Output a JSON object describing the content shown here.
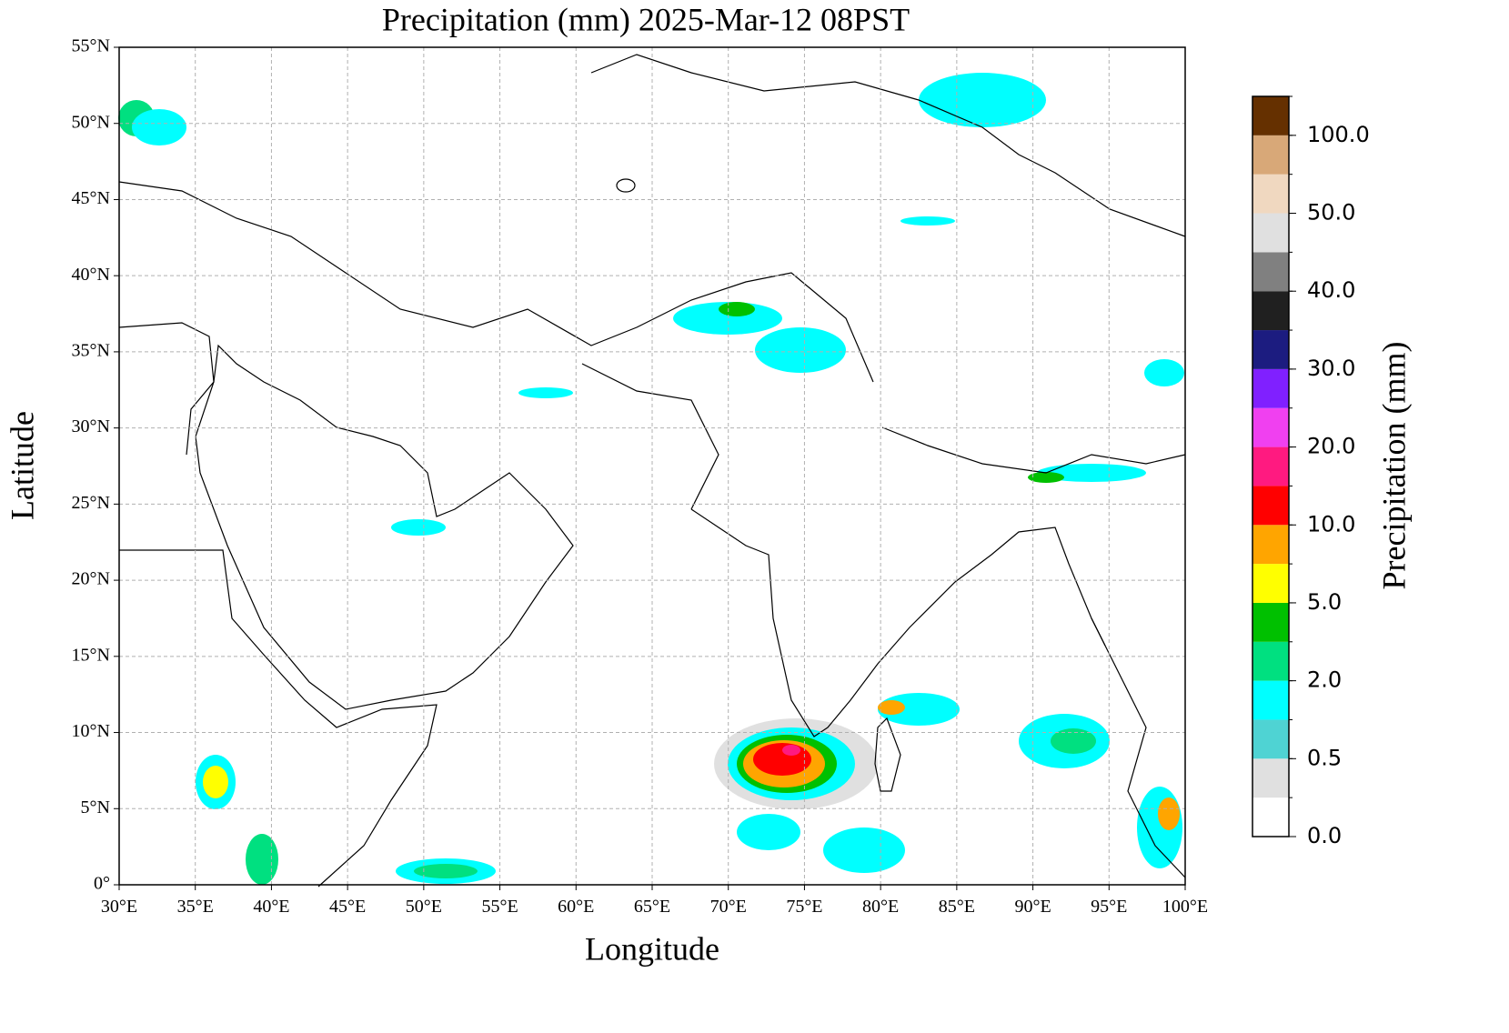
{
  "chart_data": {
    "type": "map",
    "title": "Precipitation (mm)  2025-Mar-12 08PST",
    "x_label": "Longitude",
    "y_label": "Latitude",
    "xlim": [
      30,
      100
    ],
    "ylim": [
      0,
      55
    ],
    "xticks": [
      {
        "value": 30,
        "label": "30°E"
      },
      {
        "value": 35,
        "label": "35°E"
      },
      {
        "value": 40,
        "label": "40°E"
      },
      {
        "value": 45,
        "label": "45°E"
      },
      {
        "value": 50,
        "label": "50°E"
      },
      {
        "value": 55,
        "label": "55°E"
      },
      {
        "value": 60,
        "label": "60°E"
      },
      {
        "value": 65,
        "label": "65°E"
      },
      {
        "value": 70,
        "label": "70°E"
      },
      {
        "value": 75,
        "label": "75°E"
      },
      {
        "value": 80,
        "label": "80°E"
      },
      {
        "value": 85,
        "label": "85°E"
      },
      {
        "value": 90,
        "label": "90°E"
      },
      {
        "value": 95,
        "label": "95°E"
      },
      {
        "value": 100,
        "label": "100°E"
      }
    ],
    "yticks": [
      {
        "value": 0,
        "label": "0°"
      },
      {
        "value": 5,
        "label": "5°N"
      },
      {
        "value": 10,
        "label": "10°N"
      },
      {
        "value": 15,
        "label": "15°N"
      },
      {
        "value": 20,
        "label": "20°N"
      },
      {
        "value": 25,
        "label": "25°N"
      },
      {
        "value": 30,
        "label": "30°N"
      },
      {
        "value": 35,
        "label": "35°N"
      },
      {
        "value": 40,
        "label": "40°N"
      },
      {
        "value": 45,
        "label": "45°N"
      },
      {
        "value": 50,
        "label": "50°N"
      },
      {
        "value": 55,
        "label": "55°N"
      }
    ],
    "grid": true,
    "colorbar": {
      "label": "Precipitation (mm)",
      "levels": [
        0,
        0.1,
        0.5,
        1,
        2,
        3,
        5,
        7,
        10,
        15,
        20,
        25,
        30,
        35,
        40,
        45,
        50,
        75,
        100,
        150
      ],
      "colors": [
        "#ffffff",
        "#e0e0e0",
        "#4fd3d3",
        "#00ffff",
        "#00e080",
        "#00c000",
        "#ffff00",
        "#ffa500",
        "#ff0000",
        "#ff1a80",
        "#f040f0",
        "#8020ff",
        "#1c1c80",
        "#202020",
        "#808080",
        "#e0e0e0",
        "#f0d8c0",
        "#d8a878",
        "#653000"
      ],
      "ticks": [
        {
          "value": 0,
          "label": "0.0"
        },
        {
          "value": 0.5,
          "label": "0.5"
        },
        {
          "value": 2,
          "label": "2.0"
        },
        {
          "value": 5,
          "label": "5.0"
        },
        {
          "value": 10,
          "label": "10.0"
        },
        {
          "value": 20,
          "label": "20.0"
        },
        {
          "value": 30,
          "label": "30.0"
        },
        {
          "value": 40,
          "label": "40.0"
        },
        {
          "value": 50,
          "label": "50.0"
        },
        {
          "value": 100,
          "label": "100.0"
        }
      ]
    }
  }
}
